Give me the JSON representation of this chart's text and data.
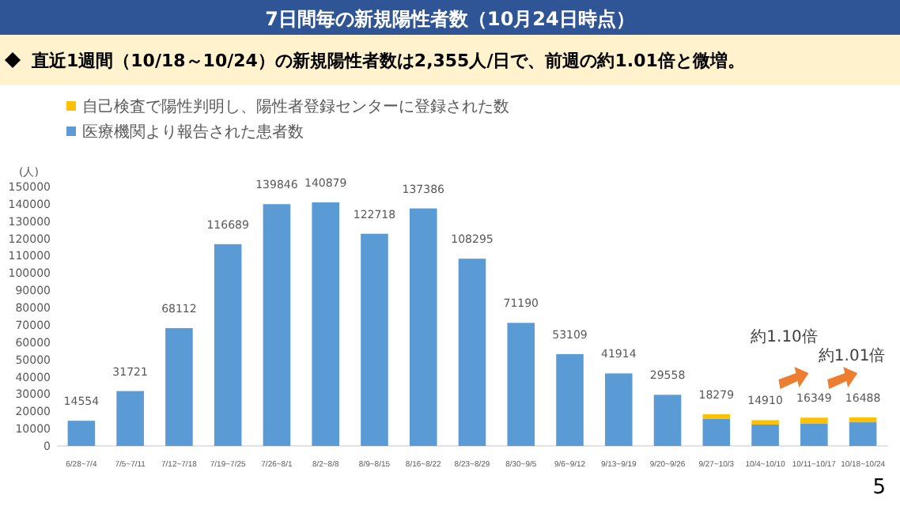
{
  "chart_data": {
    "type": "bar",
    "stacked": true,
    "title": "7日間毎の新規陽性者数（10月24日時点）",
    "subtitle": "直近1週間（10/18～10/24）の新規陽性者数は2,355人/日で、前週の約1.01倍と微増。",
    "ylabel": "(人)",
    "categories": [
      "6/28~7/4",
      "7/5~7/11",
      "7/12~7/18",
      "7/19~7/25",
      "7/26~8/1",
      "8/2~8/8",
      "8/9~8/15",
      "8/16~8/22",
      "8/23~8/29",
      "8/30~9/5",
      "9/6~9/12",
      "9/13~9/19",
      "9/20~9/26",
      "9/27~10/3",
      "10/4~10/10",
      "10/11~10/17",
      "10/18~10/24"
    ],
    "series": [
      {
        "name": "医療機関より報告された患者数",
        "color": "#5b9bd5",
        "values": [
          14554,
          31721,
          68112,
          116689,
          139846,
          140879,
          122718,
          137386,
          108295,
          71190,
          53109,
          41914,
          29558,
          15779,
          12410,
          13049,
          13688
        ]
      },
      {
        "name": "自己検査で陽性判明し、陽性者登録センターに登録された数",
        "color": "#ffc000",
        "values": [
          null,
          null,
          null,
          null,
          null,
          null,
          null,
          null,
          null,
          null,
          null,
          null,
          null,
          2500,
          2500,
          3300,
          2800
        ]
      }
    ],
    "totals": [
      "14554",
      "31721",
      "68112",
      "116689",
      "139846",
      "140879",
      "122718",
      "137386",
      "108295",
      "71190",
      "53109",
      "41914",
      "29558",
      "18279",
      "14910",
      "16349",
      "16488"
    ],
    "ylim": [
      0,
      150000
    ],
    "yticks": [
      0,
      10000,
      20000,
      30000,
      40000,
      50000,
      60000,
      70000,
      80000,
      90000,
      100000,
      110000,
      120000,
      130000,
      140000,
      150000
    ],
    "legend": "top left",
    "grid": false,
    "annotations": [
      "約1.10倍",
      "約1.01倍",
      "5"
    ]
  }
}
